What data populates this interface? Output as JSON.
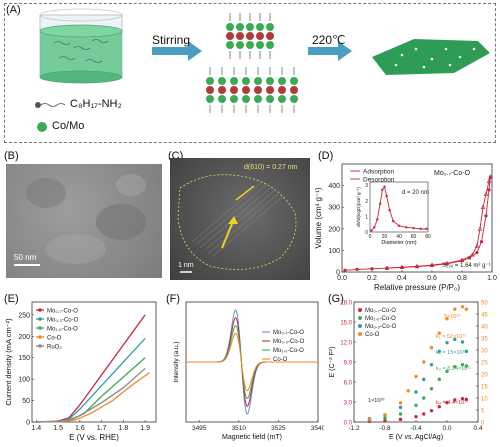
{
  "panels": {
    "A": {
      "label": "(A)",
      "stirring": "Stirring",
      "temperature": "220℃",
      "amine": "C₈H₁₇-NH₂",
      "metal": "Co/Mo"
    },
    "B": {
      "label": "(B)",
      "scalebar": "50 nm"
    },
    "C": {
      "label": "(C)",
      "scalebar": "1 nm",
      "lattice": "d(610) = 0.27 nm"
    },
    "D": {
      "label": "(D)"
    },
    "E": {
      "label": "(E)"
    },
    "F": {
      "label": "(F)"
    },
    "G": {
      "label": "(G)"
    }
  },
  "colors": {
    "green": "#3aaa57",
    "teal": "#2e9ea3",
    "red": "#c8283a",
    "orange": "#f08a24",
    "blue": "#6a8fc8",
    "grey": "#888888"
  },
  "chart_data": [
    {
      "id": "D",
      "type": "line",
      "title": "Mo₀.₇-Co-O",
      "xlabel": "Relative pressure (P/P₀)",
      "ylabel": "Volume (cm³ g⁻¹)",
      "xlim": [
        0,
        1.0
      ],
      "ylim": [
        0,
        500
      ],
      "xticks": [
        "0.0",
        "0.2",
        "0.4",
        "0.6",
        "0.8",
        "1.0"
      ],
      "yticks": [
        "0",
        "100",
        "200",
        "300",
        "400"
      ],
      "annotation": "S₂₃₄ = 1.64 m² g⁻¹",
      "series": [
        {
          "name": "Adsorption",
          "x": [
            0.02,
            0.1,
            0.2,
            0.3,
            0.4,
            0.5,
            0.6,
            0.7,
            0.8,
            0.85,
            0.9,
            0.93,
            0.96,
            0.98,
            0.99
          ],
          "y": [
            8,
            12,
            15,
            18,
            21,
            25,
            30,
            38,
            52,
            65,
            90,
            140,
            260,
            380,
            440
          ]
        },
        {
          "name": "Desorption",
          "x": [
            0.99,
            0.98,
            0.96,
            0.94,
            0.92,
            0.9,
            0.87,
            0.8,
            0.7,
            0.6,
            0.5,
            0.4,
            0.3
          ],
          "y": [
            440,
            420,
            360,
            300,
            200,
            120,
            80,
            55,
            40,
            32,
            26,
            22,
            18
          ]
        }
      ],
      "inset": {
        "xlabel": "Diameter (nm)",
        "ylabel": "dV/d(logD)(cm³ g⁻¹)",
        "annotation": "d = 20 nm",
        "xticks": [
          "0",
          "20",
          "40",
          "60",
          "80"
        ],
        "yticks": [
          "0",
          "1",
          "2",
          "3"
        ],
        "xlim": [
          0,
          80
        ],
        "ylim": [
          0,
          3.2
        ],
        "x": [
          2,
          6,
          10,
          14,
          17,
          20,
          23,
          27,
          32,
          40,
          50,
          60,
          70,
          78
        ],
        "y": [
          0.1,
          0.3,
          0.8,
          1.8,
          2.7,
          2.9,
          2.3,
          1.4,
          0.7,
          0.4,
          0.3,
          0.25,
          0.2,
          0.2
        ]
      }
    },
    {
      "id": "E",
      "type": "line",
      "xlabel": "E (V vs. RHE)",
      "ylabel": "Current density (mA cm⁻²)",
      "xlim": [
        1.38,
        1.95
      ],
      "ylim": [
        0,
        280
      ],
      "xticks": [
        "1.4",
        "1.5",
        "1.6",
        "1.7",
        "1.8",
        "1.9"
      ],
      "yticks": [
        "0",
        "50",
        "100",
        "150",
        "200",
        "250"
      ],
      "series": [
        {
          "name": "Mo₀.₇-Co-O",
          "color": "#c8283a",
          "x": [
            1.4,
            1.5,
            1.55,
            1.6,
            1.7,
            1.8,
            1.9
          ],
          "y": [
            0,
            2,
            10,
            40,
            110,
            180,
            250
          ]
        },
        {
          "name": "Mo₀.₃-Co-O",
          "color": "#2e9ea3",
          "x": [
            1.4,
            1.5,
            1.55,
            1.6,
            1.7,
            1.8,
            1.9
          ],
          "y": [
            0,
            1,
            7,
            30,
            85,
            140,
            195
          ]
        },
        {
          "name": "Mo₁.₀-Co-O",
          "color": "#3aaa57",
          "x": [
            1.4,
            1.5,
            1.56,
            1.62,
            1.7,
            1.8,
            1.9
          ],
          "y": [
            0,
            1,
            5,
            20,
            60,
            105,
            150
          ]
        },
        {
          "name": "Co-O",
          "color": "#f08a24",
          "x": [
            1.4,
            1.52,
            1.58,
            1.65,
            1.75,
            1.85,
            1.92
          ],
          "y": [
            0,
            1,
            5,
            20,
            50,
            90,
            115
          ]
        },
        {
          "name": "RuO₂",
          "color": "#888888",
          "x": [
            1.4,
            1.5,
            1.55,
            1.6,
            1.7,
            1.8,
            1.9
          ],
          "y": [
            0,
            1,
            5,
            15,
            45,
            80,
            125
          ]
        }
      ]
    },
    {
      "id": "F",
      "type": "line",
      "xlabel": "Magnetic field (mT)",
      "ylabel": "Intensity (a.u.)",
      "xlim": [
        3490,
        3540
      ],
      "xticks": [
        "3495",
        "3510",
        "3525",
        "3540"
      ],
      "series": [
        {
          "name": "Mo₀.₇-Co-O",
          "color": "#6a8fc8",
          "amplitude": 1.0
        },
        {
          "name": "Mo₀.₃-Co-O",
          "color": "#c8283a",
          "amplitude": 0.85
        },
        {
          "name": "Mo₁.₀-Co-O",
          "color": "#3aaa57",
          "amplitude": 0.7
        },
        {
          "name": "Co-O",
          "color": "#f08a24",
          "amplitude": 0.55
        }
      ]
    },
    {
      "id": "G",
      "type": "scatter",
      "xlabel": "E (V vs. AgCl/Ag)",
      "ylabel": "E (C⁻² F²)",
      "xlim": [
        -1.2,
        0.4
      ],
      "ylim_left": [
        0,
        18
      ],
      "ylim_right": [
        0,
        50
      ],
      "xticks": [
        "-1.2",
        "-0.8",
        "-0.4",
        "0.0",
        "0.4"
      ],
      "yticks_left": [
        "0.0",
        "3.0",
        "6.0",
        "9.0",
        "12.0",
        "15.0",
        "18.0"
      ],
      "yticks_right": [
        "0",
        "5",
        "10",
        "15",
        "20",
        "25",
        "30",
        "35",
        "40",
        "45",
        "50"
      ],
      "annotations": [
        "5×10¹⁰",
        "1×10¹⁰",
        "k₁ = 52×10¹¹",
        "k₂ = 15×10¹¹",
        "k₃ = 8.24×10¹¹",
        "k₄ = 4.4×10¹¹"
      ],
      "series": [
        {
          "name": "Mo₀.₇-Co-O",
          "color": "#c8283a",
          "x": [
            -1.0,
            -0.8,
            -0.6,
            -0.4,
            -0.3,
            -0.2,
            -0.1,
            0.0,
            0.1,
            0.2,
            0.25
          ],
          "y": [
            0.1,
            0.2,
            0.4,
            0.8,
            1.2,
            1.7,
            2.3,
            2.9,
            3.3,
            3.5,
            3.4
          ]
        },
        {
          "name": "Mo₁.₀-Co-O",
          "color": "#3aaa57",
          "x": [
            -1.0,
            -0.8,
            -0.6,
            -0.4,
            -0.3,
            -0.2,
            -0.1,
            0.0,
            0.1,
            0.2,
            0.25
          ],
          "y": [
            0.3,
            0.6,
            1.2,
            2.5,
            3.6,
            5.0,
            6.4,
            7.6,
            8.3,
            8.6,
            8.4
          ]
        },
        {
          "name": "Mo₀.₃-Co-O",
          "color": "#2e9ea3",
          "x": [
            -1.0,
            -0.8,
            -0.6,
            -0.4,
            -0.3,
            -0.2,
            -0.1,
            0.0,
            0.1,
            0.2,
            0.25
          ],
          "y": [
            0.5,
            1.0,
            2.2,
            4.5,
            6.4,
            8.6,
            10.6,
            11.9,
            12.4,
            12.0,
            10.6
          ]
        },
        {
          "name": "Co-O",
          "color": "#f08a24",
          "axis": "right",
          "x": [
            -1.0,
            -0.8,
            -0.6,
            -0.5,
            -0.4,
            -0.3,
            -0.2,
            -0.1,
            0.0,
            0.1,
            0.2,
            0.25
          ],
          "y": [
            1,
            3,
            8,
            13,
            19,
            25,
            31,
            37,
            43,
            47,
            48,
            47
          ]
        }
      ]
    }
  ]
}
